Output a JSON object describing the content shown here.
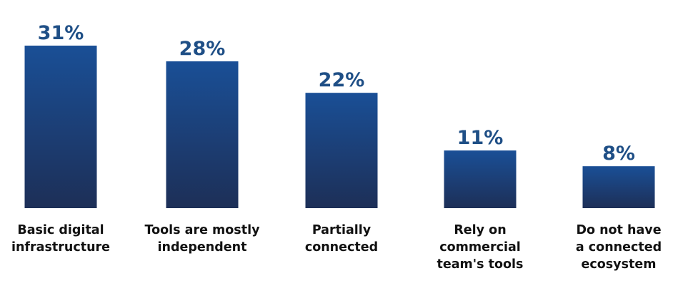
{
  "chart_data": {
    "type": "bar",
    "title": "",
    "xlabel": "",
    "ylabel": "",
    "categories": [
      "Basic digital infrastructure",
      "Tools are mostly independent",
      "Partially connected",
      "Rely on commercial team's tools",
      "Do not have a connected ecosystem"
    ],
    "category_label_lines": [
      [
        "Basic digital",
        "infrastructure"
      ],
      [
        "Tools are mostly",
        "independent"
      ],
      [
        "Partially",
        "connected"
      ],
      [
        "Rely on",
        "commercial",
        "team's tools"
      ],
      [
        "Do not have",
        "a connected",
        "ecosystem"
      ]
    ],
    "values": [
      31,
      28,
      22,
      11,
      8
    ],
    "value_labels": [
      "31%",
      "28%",
      "22%",
      "11%",
      "8%"
    ],
    "ylim": [
      0,
      31
    ],
    "grid": false,
    "legend": "none",
    "colors": {
      "bar_top": "#1a4f96",
      "bar_bottom": "#1d2f57",
      "value_text": "#1f4f86",
      "category_text": "#111111"
    }
  }
}
